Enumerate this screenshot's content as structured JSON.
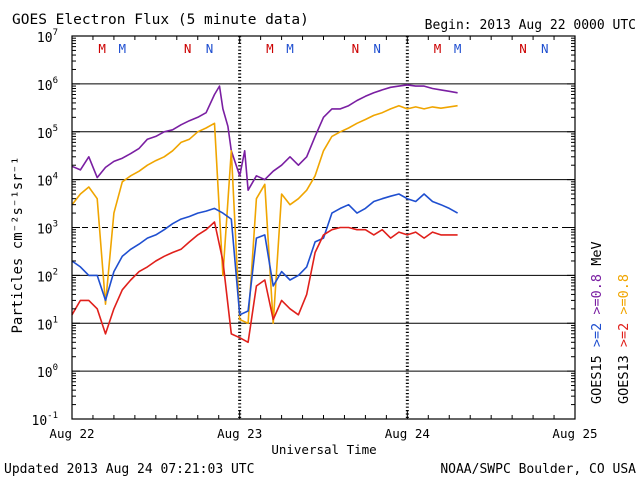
{
  "header": {
    "title": "GOES Electron Flux (5 minute data)",
    "begin": "Begin: 2013 Aug 22 0000 UTC"
  },
  "footer": {
    "updated": "Updated 2013 Aug 24 07:21:03 UTC",
    "credit": "NOAA/SWPC Boulder, CO USA"
  },
  "chart_data": {
    "type": "line",
    "title": "GOES Electron Flux (5 minute data)",
    "xlabel": "Universal Time",
    "ylabel": "Particles cm⁻²s⁻¹sr⁻¹",
    "x_unit": "days since 2013 Aug 22 0000 UTC",
    "xlim": [
      0,
      3
    ],
    "x_ticks": [
      {
        "value": 0,
        "label": "Aug 22"
      },
      {
        "value": 1,
        "label": "Aug 23"
      },
      {
        "value": 2,
        "label": "Aug 24"
      },
      {
        "value": 3,
        "label": "Aug 25"
      }
    ],
    "y_scale": "log",
    "ylim": [
      0.1,
      10000000
    ],
    "y_ticks": [
      {
        "value": 10000000,
        "base": "10",
        "exp": "7"
      },
      {
        "value": 1000000,
        "base": "10",
        "exp": "6"
      },
      {
        "value": 100000,
        "base": "10",
        "exp": "5"
      },
      {
        "value": 10000,
        "base": "10",
        "exp": "4"
      },
      {
        "value": 1000,
        "base": "10",
        "exp": "3"
      },
      {
        "value": 100,
        "base": "10",
        "exp": "2"
      },
      {
        "value": 10,
        "base": "10",
        "exp": "1"
      },
      {
        "value": 1,
        "base": "10",
        "exp": "0"
      },
      {
        "value": 0.1,
        "base": "10",
        "exp": "-1"
      }
    ],
    "grid_lines": [
      1,
      10,
      100,
      10000,
      100000,
      1000000
    ],
    "threshold": 1000,
    "local_time_markers": [
      {
        "label": "M",
        "x": 0.18,
        "color": "#cc0000"
      },
      {
        "label": "M",
        "x": 0.3,
        "color": "#1f4fd0"
      },
      {
        "label": "N",
        "x": 0.69,
        "color": "#cc0000"
      },
      {
        "label": "N",
        "x": 0.82,
        "color": "#1f4fd0"
      },
      {
        "label": "M",
        "x": 1.18,
        "color": "#cc0000"
      },
      {
        "label": "M",
        "x": 1.3,
        "color": "#1f4fd0"
      },
      {
        "label": "N",
        "x": 1.69,
        "color": "#cc0000"
      },
      {
        "label": "N",
        "x": 1.82,
        "color": "#1f4fd0"
      },
      {
        "label": "M",
        "x": 2.18,
        "color": "#cc0000"
      },
      {
        "label": "M",
        "x": 2.3,
        "color": "#1f4fd0"
      },
      {
        "label": "N",
        "x": 2.69,
        "color": "#cc0000"
      },
      {
        "label": "N",
        "x": 2.82,
        "color": "#1f4fd0"
      }
    ],
    "legend": [
      {
        "label": "GOES15",
        "energy": ">=2",
        "energy_color": "#1f4fd0",
        "energy2": ">=0.8",
        "energy2_color": "#7a1fa2",
        "unit": "MeV"
      },
      {
        "label": "GOES13",
        "energy": ">=2",
        "energy_color": "#e0201b",
        "energy2": ">=0.8",
        "energy2_color": "#f0a500",
        "unit": ""
      }
    ],
    "series": [
      {
        "name": "GOES15 >=0.8 MeV",
        "color": "#7a1fa2",
        "x": [
          0.0,
          0.05,
          0.1,
          0.15,
          0.2,
          0.25,
          0.3,
          0.35,
          0.4,
          0.45,
          0.5,
          0.55,
          0.6,
          0.65,
          0.7,
          0.75,
          0.8,
          0.85,
          0.88,
          0.9,
          0.93,
          0.95,
          1.0,
          1.03,
          1.05,
          1.1,
          1.15,
          1.2,
          1.25,
          1.3,
          1.35,
          1.4,
          1.45,
          1.5,
          1.55,
          1.6,
          1.65,
          1.7,
          1.75,
          1.8,
          1.85,
          1.9,
          1.95,
          2.0,
          2.05,
          2.1,
          2.15,
          2.2,
          2.25,
          2.3
        ],
        "y": [
          19000,
          16000,
          30000,
          11000,
          18000,
          24000,
          28000,
          35000,
          45000,
          70000,
          80000,
          100000,
          110000,
          140000,
          170000,
          200000,
          250000,
          600000,
          900000,
          300000,
          130000,
          40000,
          12000,
          40000,
          6000,
          12000,
          10000,
          15000,
          20000,
          30000,
          20000,
          30000,
          80000,
          200000,
          300000,
          300000,
          350000,
          450000,
          550000,
          650000,
          750000,
          850000,
          900000,
          950000,
          900000,
          900000,
          800000,
          750000,
          700000,
          650000
        ]
      },
      {
        "name": "GOES13 >=0.8 MeV",
        "color": "#f0a500",
        "x": [
          0.0,
          0.05,
          0.1,
          0.15,
          0.2,
          0.25,
          0.3,
          0.35,
          0.4,
          0.45,
          0.5,
          0.55,
          0.6,
          0.65,
          0.7,
          0.75,
          0.8,
          0.85,
          0.9,
          0.95,
          1.0,
          1.05,
          1.1,
          1.15,
          1.2,
          1.25,
          1.3,
          1.35,
          1.4,
          1.45,
          1.5,
          1.55,
          1.6,
          1.65,
          1.7,
          1.75,
          1.8,
          1.85,
          1.9,
          1.95,
          2.0,
          2.05,
          2.1,
          2.15,
          2.2,
          2.25,
          2.3
        ],
        "y": [
          3000,
          5000,
          7000,
          4000,
          25,
          2000,
          9000,
          12000,
          15000,
          20000,
          25000,
          30000,
          40000,
          60000,
          70000,
          100000,
          120000,
          150000,
          100,
          40000,
          12,
          10,
          4000,
          8000,
          10,
          5000,
          3000,
          4000,
          6000,
          12000,
          40000,
          80000,
          100000,
          120000,
          150000,
          180000,
          220000,
          250000,
          300000,
          350000,
          300000,
          330000,
          300000,
          330000,
          310000,
          330000,
          350000
        ]
      },
      {
        "name": "GOES15 >=2 MeV",
        "color": "#1f4fd0",
        "x": [
          0.0,
          0.05,
          0.1,
          0.15,
          0.2,
          0.25,
          0.3,
          0.35,
          0.4,
          0.45,
          0.5,
          0.55,
          0.6,
          0.65,
          0.7,
          0.75,
          0.8,
          0.85,
          0.9,
          0.95,
          1.0,
          1.05,
          1.1,
          1.15,
          1.2,
          1.25,
          1.3,
          1.35,
          1.4,
          1.45,
          1.5,
          1.55,
          1.6,
          1.65,
          1.7,
          1.75,
          1.8,
          1.85,
          1.9,
          1.95,
          2.0,
          2.05,
          2.1,
          2.15,
          2.2,
          2.25,
          2.3
        ],
        "y": [
          200,
          150,
          100,
          100,
          30,
          120,
          250,
          350,
          450,
          600,
          700,
          900,
          1200,
          1500,
          1700,
          2000,
          2200,
          2500,
          2000,
          1500,
          15,
          18,
          600,
          700,
          60,
          120,
          80,
          100,
          150,
          500,
          600,
          2000,
          2500,
          3000,
          2000,
          2500,
          3500,
          4000,
          4500,
          5000,
          4000,
          3500,
          5000,
          3500,
          3000,
          2500,
          2000
        ]
      },
      {
        "name": "GOES13 >=2 MeV",
        "color": "#e0201b",
        "x": [
          0.0,
          0.05,
          0.1,
          0.15,
          0.2,
          0.25,
          0.3,
          0.35,
          0.4,
          0.45,
          0.5,
          0.55,
          0.6,
          0.65,
          0.7,
          0.75,
          0.8,
          0.85,
          0.9,
          0.95,
          1.0,
          1.05,
          1.1,
          1.15,
          1.2,
          1.25,
          1.3,
          1.35,
          1.4,
          1.45,
          1.5,
          1.55,
          1.6,
          1.65,
          1.7,
          1.75,
          1.8,
          1.85,
          1.9,
          1.95,
          2.0,
          2.05,
          2.1,
          2.15,
          2.2,
          2.25,
          2.3
        ],
        "y": [
          15,
          30,
          30,
          20,
          6,
          20,
          50,
          80,
          120,
          150,
          200,
          250,
          300,
          350,
          500,
          700,
          900,
          1300,
          200,
          6,
          5,
          4,
          60,
          80,
          12,
          30,
          20,
          15,
          40,
          300,
          700,
          900,
          1000,
          1000,
          900,
          900,
          700,
          900,
          600,
          800,
          700,
          800,
          600,
          800,
          700,
          700,
          700
        ]
      }
    ]
  }
}
